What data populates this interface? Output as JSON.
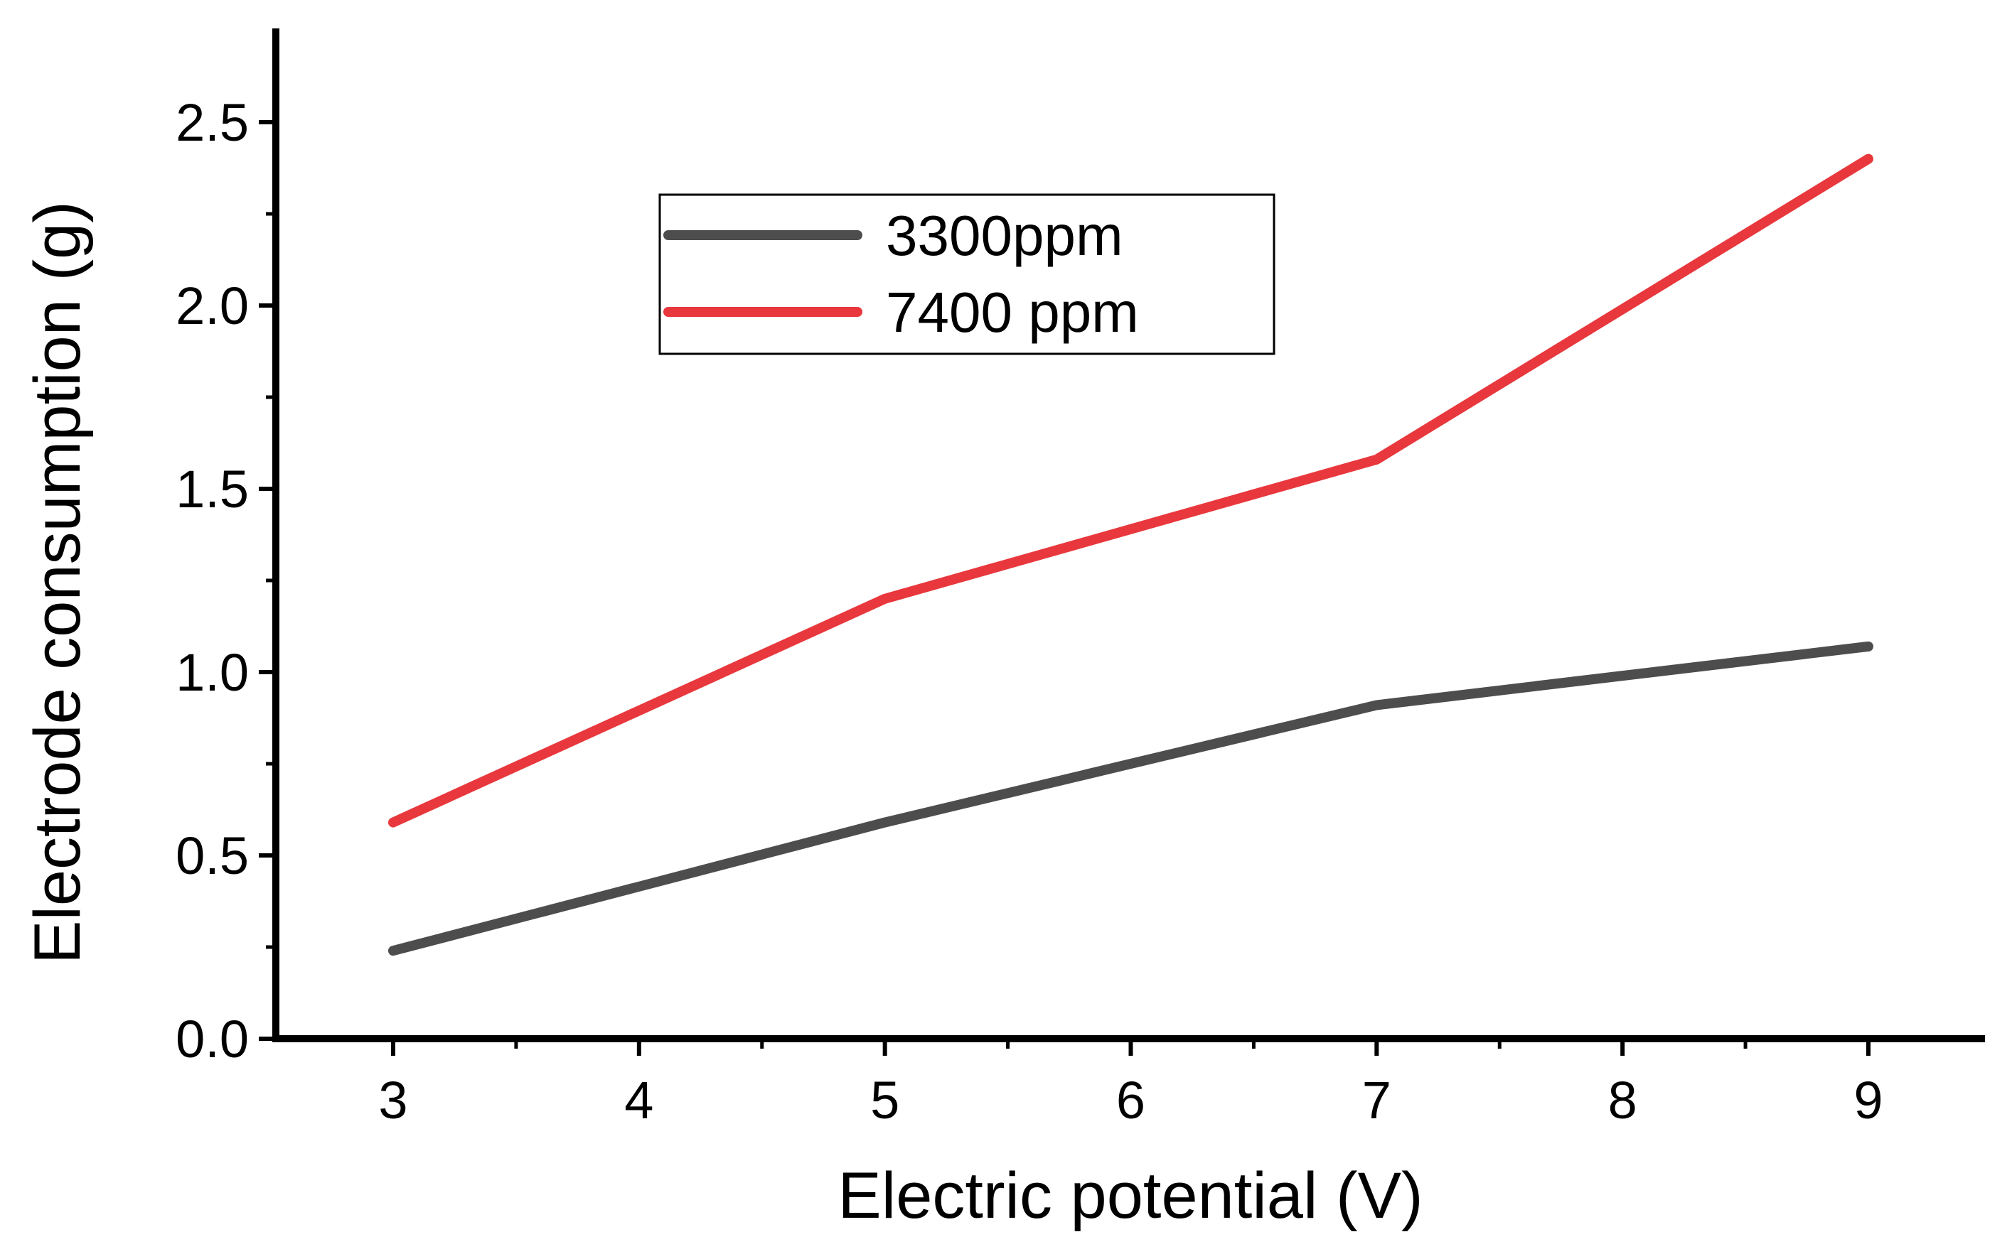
{
  "chart_data": {
    "type": "line",
    "title": "",
    "xlabel": "Electric potential (V)",
    "ylabel": "Electrode consumption (g)",
    "x": [
      3,
      5,
      7,
      9
    ],
    "xlim": [
      2.5,
      9.5
    ],
    "ylim": [
      0,
      2.75
    ],
    "xticks": [
      "3",
      "4",
      "5",
      "6",
      "7",
      "8",
      "9"
    ],
    "yticks": [
      "0.0",
      "0.5",
      "1.0",
      "1.5",
      "2.0",
      "2.5"
    ],
    "grid": false,
    "legend_position": "top-left",
    "series": [
      {
        "name": "3300ppm",
        "color": "#4d4d4d",
        "values": [
          0.24,
          0.59,
          0.91,
          1.07
        ]
      },
      {
        "name": "7400 ppm",
        "color": "#e8383d",
        "values": [
          0.59,
          1.2,
          1.58,
          2.4
        ]
      }
    ]
  }
}
